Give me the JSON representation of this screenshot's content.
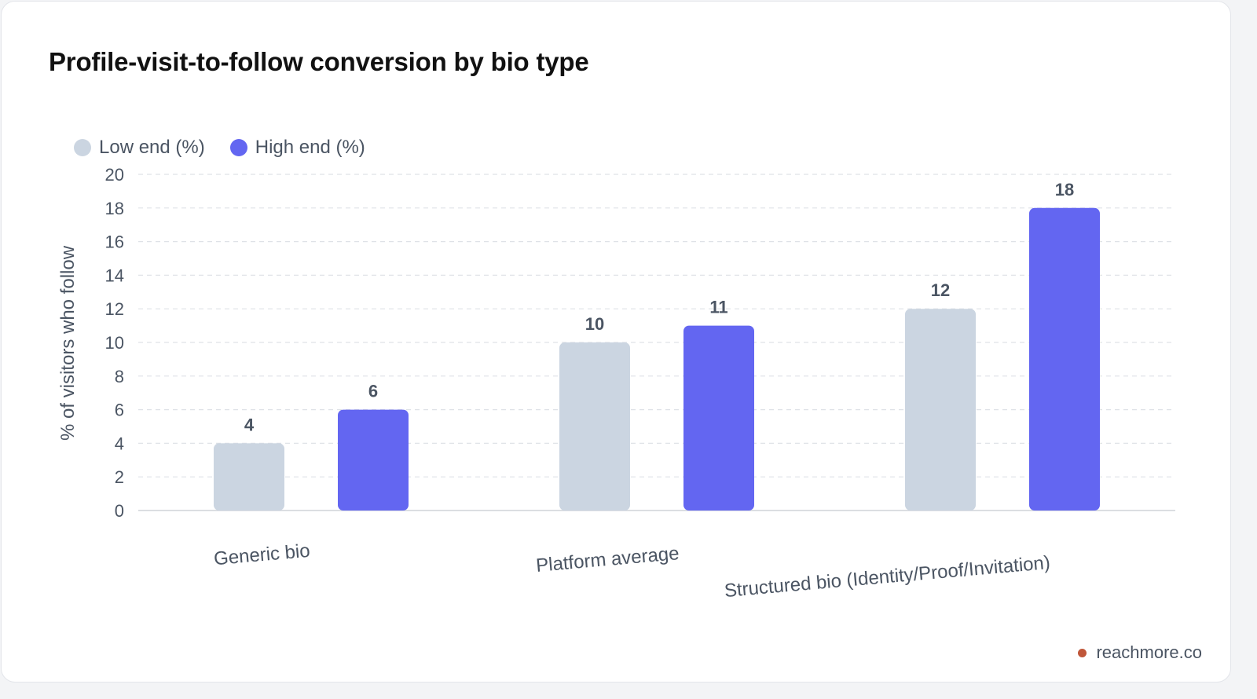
{
  "title": "Profile-visit-to-follow conversion by bio type",
  "footer": {
    "text": "reachmore.co",
    "dot_color": "#c0573a"
  },
  "chart_data": {
    "type": "bar",
    "title": "Profile-visit-to-follow conversion by bio type",
    "xlabel": "",
    "ylabel": "% of visitors who follow",
    "categories": [
      "Generic bio",
      "Platform average",
      "Structured bio (Identity/Proof/Invitation)"
    ],
    "series": [
      {
        "name": "Low end (%)",
        "values": [
          4,
          10,
          12
        ],
        "color": "#cbd5e1"
      },
      {
        "name": "High end (%)",
        "values": [
          6,
          11,
          18
        ],
        "color": "#6366f1"
      }
    ],
    "ylim": [
      0,
      20
    ],
    "yticks": [
      0,
      2,
      4,
      6,
      8,
      10,
      12,
      14,
      16,
      18,
      20
    ],
    "grid": true,
    "legend_position": "top-left"
  }
}
